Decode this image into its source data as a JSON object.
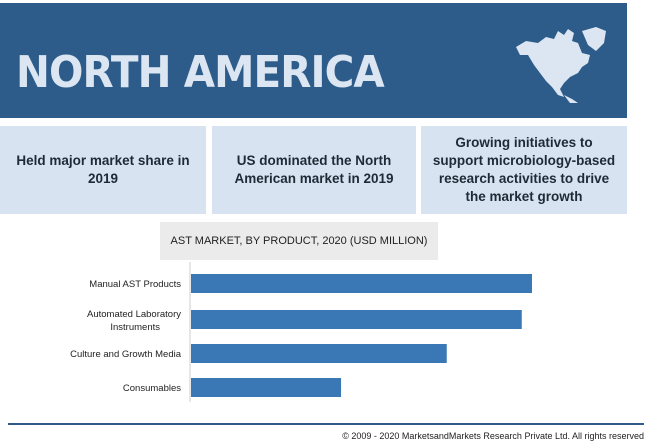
{
  "banner": {
    "title": "NORTH AMERICA",
    "map_icon": "north-america-map-icon"
  },
  "highlights": [
    "Held major market share in 2019",
    "US dominated the North American market in 2019",
    "Growing initiatives to support microbiology-based research activities to drive the market growth"
  ],
  "chart_data": {
    "type": "bar",
    "orientation": "horizontal",
    "title": "AST MARKET, BY PRODUCT, 2020 (USD MILLION)",
    "categories": [
      "Manual AST Products",
      "Automated Laboratory Instruments",
      "Culture and Growth Media",
      "Consumables"
    ],
    "values": [
      100,
      97,
      75,
      44
    ],
    "values_note": "relative bar lengths; no axis values printed",
    "bar_color": "#3a78b5",
    "grid": false
  },
  "footer": {
    "copyright": "© 2009 - 2020 MarketsandMarkets Research Private Ltd. All rights reserved"
  }
}
